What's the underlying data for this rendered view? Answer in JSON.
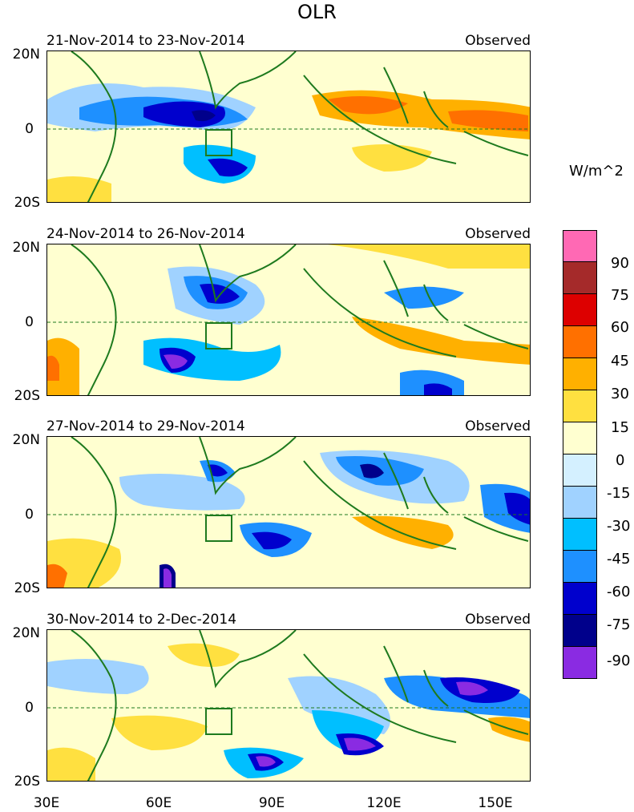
{
  "title": "OLR",
  "units": "W/m^2",
  "colors": {
    "coast": "#1e7a1e",
    "scale": [
      "#8a2be2",
      "#00008b",
      "#0000cd",
      "#1e90ff",
      "#00bfff",
      "#a0d2ff",
      "#d4f0ff",
      "#ffffd0",
      "#ffe040",
      "#ffb000",
      "#ff7000",
      "#dd0000",
      "#a52a2a",
      "#ff69b4"
    ]
  },
  "y_labels": [
    "20N",
    "0",
    "20S"
  ],
  "x_labels": [
    "30E",
    "60E",
    "90E",
    "120E",
    "150E"
  ],
  "colorbar_labels": [
    "90",
    "75",
    "60",
    "45",
    "30",
    "15",
    "0",
    "-15",
    "-30",
    "-45",
    "-60",
    "-75",
    "-90"
  ],
  "panels": [
    {
      "period": "21-Nov-2014 to 23-Nov-2014",
      "type": "Observed"
    },
    {
      "period": "24-Nov-2014 to 26-Nov-2014",
      "type": "Observed"
    },
    {
      "period": "27-Nov-2014 to 29-Nov-2014",
      "type": "Observed"
    },
    {
      "period": "30-Nov-2014 to 2-Dec-2014",
      "type": "Observed"
    }
  ]
}
